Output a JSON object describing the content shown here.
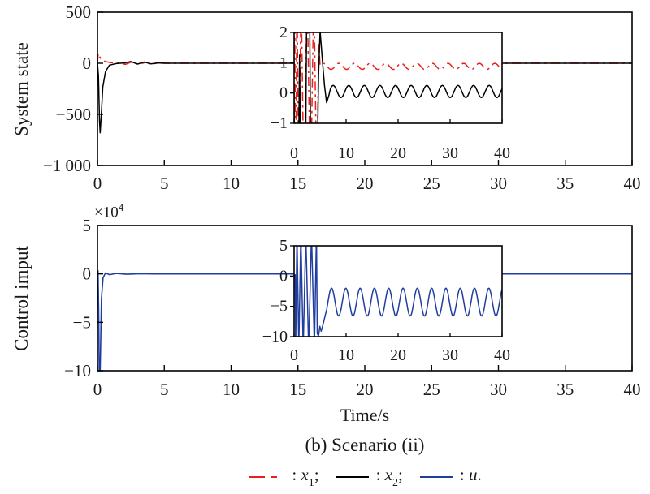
{
  "figure": {
    "xlabel": "Time/s",
    "caption": "(b) Scenario (ii)",
    "legend": {
      "items": [
        {
          "prefix": ": ",
          "variable": "x",
          "sub": "1",
          "suffix": ";",
          "color": "#e8201e",
          "style": "dashdot"
        },
        {
          "prefix": ": ",
          "variable": "x",
          "sub": "2",
          "suffix": ";",
          "color": "#000000",
          "style": "solid"
        },
        {
          "prefix": ": ",
          "variable": "u",
          "sub": "",
          "suffix": ".",
          "color": "#203da0",
          "style": "solid"
        }
      ]
    }
  },
  "chart_data": [
    {
      "id": "system-state",
      "type": "line",
      "ylabel": "System state",
      "xlim": [
        0,
        40
      ],
      "ylim": [
        -1000,
        500
      ],
      "grid": false,
      "xticks": {
        "values": [
          0,
          5,
          10,
          15,
          20,
          25,
          30,
          35,
          40
        ],
        "labels": [
          "0",
          "5",
          "10",
          "15",
          "20",
          "25",
          "30",
          "35",
          "40"
        ]
      },
      "yticks": {
        "values": [
          500,
          0,
          -500,
          -1000
        ],
        "labels": [
          "500",
          "0",
          "−500",
          "−1 000"
        ]
      },
      "series": [
        {
          "name": "x1",
          "color": "#e8201e",
          "style": "dashdot",
          "width": 1.6,
          "segments": [
            {
              "pts": [
                [
                  0,
                  2
                ],
                [
                  0.05,
                  95
                ],
                [
                  0.12,
                  70
                ],
                [
                  0.3,
                  38
                ],
                [
                  0.6,
                  16
                ],
                [
                  1,
                  6
                ],
                [
                  1.6,
                  1
                ],
                [
                  2.1,
                  -10
                ],
                [
                  2.6,
                  14
                ],
                [
                  3.1,
                  -12
                ],
                [
                  3.6,
                  9
                ],
                [
                  4.1,
                  -6
                ],
                [
                  4.6,
                  3
                ],
                [
                  5.2,
                  1
                ],
                [
                  40,
                  1
                ]
              ]
            }
          ]
        },
        {
          "name": "x2",
          "color": "#000000",
          "style": "solid",
          "width": 1.5,
          "segments": [
            {
              "pts": [
                [
                  0,
                  0
                ],
                [
                  0.07,
                  -120
                ],
                [
                  0.15,
                  -560
                ],
                [
                  0.2,
                  -680
                ],
                [
                  0.28,
                  -520
                ],
                [
                  0.4,
                  -230
                ],
                [
                  0.6,
                  -80
                ],
                [
                  0.9,
                  -18
                ],
                [
                  1.4,
                  -3
                ],
                [
                  2,
                  3
                ],
                [
                  2.5,
                  17
                ],
                [
                  3,
                  -8
                ],
                [
                  3.5,
                  12
                ],
                [
                  4,
                  -6
                ],
                [
                  4.5,
                  3
                ],
                [
                  5,
                  0
                ],
                [
                  40,
                  0
                ]
              ]
            }
          ]
        }
      ],
      "inset": {
        "xlim": [
          0,
          40
        ],
        "ylim": [
          -1,
          2
        ],
        "xticks": {
          "values": [
            0,
            10,
            20,
            30,
            40
          ],
          "labels": [
            "0",
            "10",
            "20",
            "30",
            "40"
          ]
        },
        "yticks": {
          "values": [
            2,
            1,
            0,
            -1
          ],
          "labels": [
            "2",
            "1",
            "0",
            "−1"
          ]
        },
        "series": [
          {
            "name": "x1",
            "color": "#e8201e",
            "style": "dashdot",
            "width": 1.5,
            "segments": [
              {
                "pts": [
                  [
                    0,
                    0.9
                  ],
                  [
                    0.1,
                    3.5
                  ],
                  [
                    0.3,
                    -3.5
                  ],
                  [
                    0.55,
                    3.5
                  ],
                  [
                    0.9,
                    -3.5
                  ],
                  [
                    1.35,
                    3.5
                  ],
                  [
                    1.9,
                    -3.5
                  ],
                  [
                    2.5,
                    3.5
                  ],
                  [
                    3.15,
                    -3.5
                  ],
                  [
                    3.8,
                    3.5
                  ],
                  [
                    4.35,
                    -3
                  ],
                  [
                    4.75,
                    1.6
                  ],
                  [
                    5,
                    0.91
                  ]
                ]
              },
              {
                "osc": {
                  "t0": 5,
                  "t1": 40,
                  "center": 0.88,
                  "amp": 0.1,
                  "period": 3,
                  "phase": 0.3
                }
              }
            ]
          },
          {
            "name": "x2",
            "color": "#000000",
            "style": "solid",
            "width": 1.5,
            "segments": [
              {
                "pts": [
                  [
                    0,
                    0
                  ],
                  [
                    0.15,
                    -3.5
                  ],
                  [
                    0.8,
                    -3.5
                  ],
                  [
                    1.05,
                    1.25
                  ],
                  [
                    1.3,
                    -3.5
                  ],
                  [
                    2.15,
                    -3.5
                  ],
                  [
                    2.45,
                    3.5
                  ],
                  [
                    2.95,
                    3.5
                  ],
                  [
                    3.25,
                    -3.5
                  ],
                  [
                    4.35,
                    -3.5
                  ],
                  [
                    4.7,
                    0.6
                  ],
                  [
                    5,
                    2.05
                  ],
                  [
                    5.45,
                    1.05
                  ],
                  [
                    5.85,
                    0.25
                  ],
                  [
                    6.25,
                    -0.32
                  ],
                  [
                    6.65,
                    -0.1
                  ],
                  [
                    7,
                    0.15
                  ]
                ]
              },
              {
                "osc": {
                  "t0": 7,
                  "t1": 40,
                  "center": 0.05,
                  "amp": 0.2,
                  "period": 3,
                  "phase": 0.5
                }
              }
            ]
          }
        ]
      }
    },
    {
      "id": "control-input",
      "type": "line",
      "ylabel": "Control imput",
      "scale_label": {
        "base": "×10",
        "exp": "4"
      },
      "xlim": [
        0,
        40
      ],
      "ylim": [
        -10,
        5
      ],
      "grid": false,
      "xticks": {
        "values": [
          0,
          5,
          10,
          15,
          20,
          25,
          30,
          35,
          40
        ],
        "labels": [
          "0",
          "5",
          "10",
          "15",
          "20",
          "25",
          "30",
          "35",
          "40"
        ]
      },
      "yticks": {
        "values": [
          5,
          0,
          -5,
          -10
        ],
        "labels": [
          "5",
          "0",
          "−5",
          "−10"
        ]
      },
      "series": [
        {
          "name": "u",
          "color": "#203da0",
          "style": "solid",
          "width": 1.6,
          "segments": [
            {
              "pts": [
                [
                  0,
                  0
                ],
                [
                  0.04,
                  0.32
                ],
                [
                  0.09,
                  -4
                ],
                [
                  0.13,
                  -10
                ],
                [
                  0.2,
                  -10
                ],
                [
                  0.3,
                  -2.5
                ],
                [
                  0.42,
                  -0.4
                ],
                [
                  0.6,
                  0.1
                ],
                [
                  0.9,
                  -0.08
                ],
                [
                  1.4,
                  0.05
                ],
                [
                  2.2,
                  -0.04
                ],
                [
                  3.2,
                  0.02
                ],
                [
                  4.2,
                  0
                ],
                [
                  40,
                  0
                ]
              ]
            }
          ]
        }
      ],
      "inset": {
        "xlim": [
          0,
          40
        ],
        "ylim": [
          -10,
          5
        ],
        "xticks": {
          "values": [
            0,
            10,
            20,
            30,
            40
          ],
          "labels": [
            "0",
            "10",
            "20",
            "30",
            "40"
          ]
        },
        "yticks": {
          "values": [
            5,
            0,
            -5,
            -10
          ],
          "labels": [
            "5",
            "0",
            "−5",
            "−10"
          ]
        },
        "series": [
          {
            "name": "u",
            "color": "#203da0",
            "style": "solid",
            "width": 1.5,
            "segments": [
              {
                "pts": [
                  [
                    0,
                    0.15
                  ],
                  [
                    0.2,
                    0.2
                  ],
                  [
                    0.3,
                    -12
                  ],
                  [
                    0.55,
                    7
                  ],
                  [
                    0.9,
                    -12
                  ],
                  [
                    1.3,
                    7
                  ],
                  [
                    1.75,
                    -12
                  ],
                  [
                    2.25,
                    7
                  ],
                  [
                    2.8,
                    -12
                  ],
                  [
                    3.35,
                    7
                  ],
                  [
                    3.9,
                    -12
                  ],
                  [
                    4.3,
                    7
                  ],
                  [
                    4.45,
                    -9.5
                  ],
                  [
                    4.7,
                    -9.9
                  ],
                  [
                    4.95,
                    -8.3
                  ],
                  [
                    5.2,
                    -9.1
                  ],
                  [
                    5.6,
                    -7.9
                  ],
                  [
                    6.1,
                    -6.1
                  ]
                ]
              },
              {
                "osc": {
                  "t0": 6.1,
                  "t1": 40,
                  "center": -4.3,
                  "amp": 2.3,
                  "period": 2.75,
                  "phase": -0.94
                }
              }
            ]
          }
        ]
      }
    }
  ]
}
